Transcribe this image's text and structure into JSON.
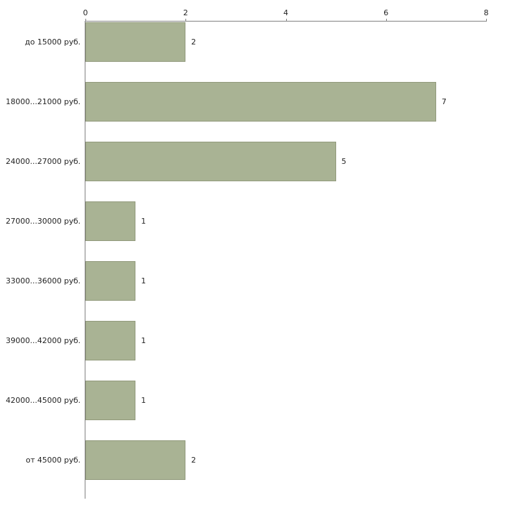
{
  "chart_data": {
    "type": "bar",
    "orientation": "horizontal",
    "title": "",
    "xlabel": "",
    "ylabel": "",
    "categories": [
      "до 15000 руб.",
      "18000...21000 руб.",
      "24000...27000 руб.",
      "27000...30000 руб.",
      "33000...36000 руб.",
      "39000...42000 руб.",
      "42000...45000 руб.",
      "от 45000 руб."
    ],
    "values": [
      2,
      7,
      5,
      1,
      1,
      1,
      1,
      2
    ],
    "xlim": [
      0,
      8
    ],
    "x_ticks": [
      "0",
      "2",
      "4",
      "6",
      "8"
    ],
    "x_axis_position": "top",
    "grid": false,
    "value_labels": true,
    "legend": "none",
    "colors": {
      "bar_fill": "#a9b394",
      "bar_border": "#91997b",
      "axis": "#808080",
      "text": "#222222",
      "background": "#ffffff"
    }
  }
}
